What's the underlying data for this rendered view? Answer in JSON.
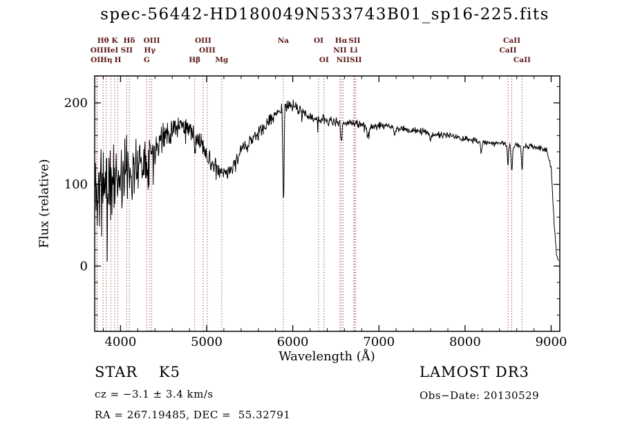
{
  "chart_data": {
    "type": "line",
    "title": "spec-56442-HD180049N533743B01_sp16-225.fits",
    "xlabel": "Wavelength (Å)",
    "ylabel": "Flux (relative)",
    "xlim": [
      3700,
      9100
    ],
    "ylim": [
      -80,
      233
    ],
    "xticks": [
      4000,
      5000,
      6000,
      7000,
      8000,
      9000
    ],
    "yticks": [
      0,
      100,
      200
    ],
    "x_minor_step": 200,
    "y_minor_step": 20,
    "grid": "off",
    "legend": "none",
    "line_color": "#000000",
    "axis_color": "#000000",
    "background_color": "#ffffff",
    "marker_color": "#aa5555",
    "marker_label_color": "#5a1515",
    "continuum": [
      [
        3700,
        95
      ],
      [
        3800,
        98
      ],
      [
        3900,
        102
      ],
      [
        4000,
        112
      ],
      [
        4100,
        118
      ],
      [
        4200,
        126
      ],
      [
        4300,
        134
      ],
      [
        4400,
        148
      ],
      [
        4500,
        158
      ],
      [
        4600,
        168
      ],
      [
        4700,
        173
      ],
      [
        4750,
        172
      ],
      [
        4850,
        162
      ],
      [
        4950,
        148
      ],
      [
        5050,
        130
      ],
      [
        5150,
        115
      ],
      [
        5220,
        112
      ],
      [
        5300,
        122
      ],
      [
        5400,
        140
      ],
      [
        5500,
        152
      ],
      [
        5600,
        163
      ],
      [
        5700,
        174
      ],
      [
        5800,
        186
      ],
      [
        5900,
        196
      ],
      [
        6000,
        197
      ],
      [
        6100,
        189
      ],
      [
        6200,
        183
      ],
      [
        6300,
        180
      ],
      [
        6450,
        177
      ],
      [
        6600,
        176
      ],
      [
        6750,
        174
      ],
      [
        6900,
        171
      ],
      [
        7050,
        172
      ],
      [
        7200,
        169
      ],
      [
        7350,
        167
      ],
      [
        7500,
        165
      ],
      [
        7650,
        162
      ],
      [
        7800,
        160
      ],
      [
        7950,
        157
      ],
      [
        8100,
        154
      ],
      [
        8250,
        152
      ],
      [
        8400,
        151
      ],
      [
        8550,
        149
      ],
      [
        8700,
        147
      ],
      [
        8850,
        145
      ],
      [
        8950,
        142
      ],
      [
        9000,
        120
      ],
      [
        9030,
        60
      ],
      [
        9060,
        15
      ],
      [
        9085,
        5
      ]
    ],
    "noise_amp": [
      [
        3700,
        65
      ],
      [
        3780,
        62
      ],
      [
        3860,
        58
      ],
      [
        3950,
        52
      ],
      [
        4050,
        45
      ],
      [
        4150,
        40
      ],
      [
        4250,
        34
      ],
      [
        4350,
        26
      ],
      [
        4450,
        20
      ],
      [
        4550,
        16
      ],
      [
        4700,
        13
      ],
      [
        4900,
        12
      ],
      [
        5100,
        11
      ],
      [
        5300,
        10
      ],
      [
        5500,
        9
      ],
      [
        5700,
        9
      ],
      [
        5900,
        8
      ],
      [
        6100,
        7
      ],
      [
        6300,
        7
      ],
      [
        6500,
        6
      ],
      [
        6800,
        5
      ],
      [
        7200,
        5
      ],
      [
        7600,
        4.5
      ],
      [
        8000,
        4
      ],
      [
        8500,
        4
      ],
      [
        9000,
        3.5
      ]
    ],
    "absorption_lines": [
      {
        "center": 5892,
        "depth": 118,
        "sigma": 7
      },
      {
        "center": 6563,
        "depth": 28,
        "sigma": 7
      },
      {
        "center": 4861,
        "depth": 22,
        "sigma": 7
      },
      {
        "center": 8498,
        "depth": 26,
        "sigma": 7
      },
      {
        "center": 8542,
        "depth": 34,
        "sigma": 8
      },
      {
        "center": 8662,
        "depth": 30,
        "sigma": 8
      },
      {
        "center": 8190,
        "depth": 12,
        "sigma": 8
      },
      {
        "center": 6870,
        "depth": 14,
        "sigma": 10
      },
      {
        "center": 7180,
        "depth": 8,
        "sigma": 10
      },
      {
        "center": 7600,
        "depth": 10,
        "sigma": 12
      }
    ],
    "spectral_markers": [
      {
        "wavelength": 3726,
        "label": "OII",
        "row": 1
      },
      {
        "wavelength": 3729,
        "label": "OII",
        "row": 2
      },
      {
        "wavelength": 3798,
        "label": "Hθ",
        "row": 0
      },
      {
        "wavelength": 3835,
        "label": "Hη",
        "row": 2
      },
      {
        "wavelength": 3889,
        "label": "HeI",
        "row": 1
      },
      {
        "wavelength": 3933,
        "label": "K",
        "row": 0
      },
      {
        "wavelength": 3968,
        "label": "H",
        "row": 2
      },
      {
        "wavelength": 4072,
        "label": "SII",
        "row": 1
      },
      {
        "wavelength": 4101,
        "label": "Hδ",
        "row": 0
      },
      {
        "wavelength": 4305,
        "label": "G",
        "row": 2
      },
      {
        "wavelength": 4340,
        "label": "Hγ",
        "row": 1
      },
      {
        "wavelength": 4363,
        "label": "OIII",
        "row": 0
      },
      {
        "wavelength": 4861,
        "label": "Hβ",
        "row": 2
      },
      {
        "wavelength": 4959,
        "label": "OIII",
        "row": 0
      },
      {
        "wavelength": 5007,
        "label": "OIII",
        "row": 1
      },
      {
        "wavelength": 5175,
        "label": "Mg",
        "row": 2
      },
      {
        "wavelength": 5890,
        "label": "Na",
        "row": 0
      },
      {
        "wavelength": 6300,
        "label": "OI",
        "row": 0
      },
      {
        "wavelength": 6363,
        "label": "OI",
        "row": 2
      },
      {
        "wavelength": 6548,
        "label": "NII",
        "row": 1
      },
      {
        "wavelength": 6563,
        "label": "Hα",
        "row": 0
      },
      {
        "wavelength": 6583,
        "label": "NII",
        "row": 2
      },
      {
        "wavelength": 6707,
        "label": "Li",
        "row": 1
      },
      {
        "wavelength": 6716,
        "label": "SII",
        "row": 0
      },
      {
        "wavelength": 6731,
        "label": "SII",
        "row": 2
      },
      {
        "wavelength": 8498,
        "label": "CaII",
        "row": 1
      },
      {
        "wavelength": 8542,
        "label": "CaII",
        "row": 0
      },
      {
        "wavelength": 8662,
        "label": "CaII",
        "row": 2
      }
    ]
  },
  "annotations": {
    "classification": "STAR    K5",
    "survey": "LAMOST DR3",
    "cz": "cz = −3.1 ± 3.4 km/s",
    "obs_date": "Obs−Date: 20130529",
    "ra_dec": "RA = 267.19485, DEC =  55.32791"
  }
}
